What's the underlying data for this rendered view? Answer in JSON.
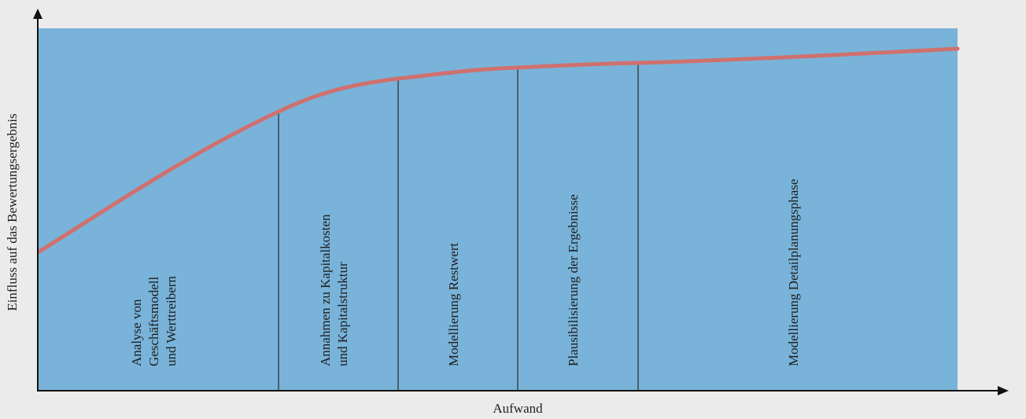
{
  "x_axis_label": "Aufwand",
  "y_axis_label": "Einfluss auf das Bewertungsergebnis",
  "phases": [
    {
      "lines": [
        "Analyse von",
        "Geschäftsmodell",
        "und Werttreibern"
      ]
    },
    {
      "lines": [
        "Annahmen zu Kapitalkosten",
        "und Kapitalstruktur"
      ]
    },
    {
      "lines": [
        "Modellierung Restwert"
      ]
    },
    {
      "lines": [
        "Plausibilisierung der Ergebnisse"
      ]
    },
    {
      "lines": [
        "Modellierung Detailplanungsphase"
      ]
    }
  ],
  "colors": {
    "background": "#ebebeb",
    "area": "#79b3d9",
    "curve": "#d0706e",
    "axis": "#111111",
    "divider": "#2a2a2a"
  }
}
